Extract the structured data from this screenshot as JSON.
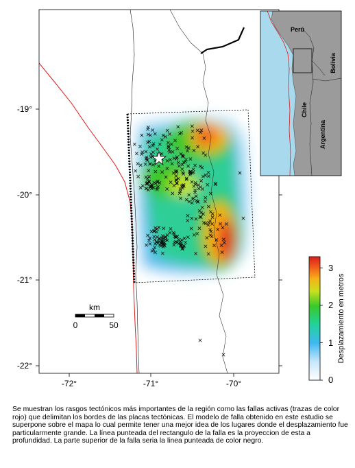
{
  "map": {
    "lat_ticks": [
      "-19°",
      "-20°",
      "-21°",
      "-22°"
    ],
    "lon_ticks": [
      "-72°",
      "-71°",
      "-70°"
    ],
    "epicenter_icon": "star-icon",
    "aftershock_icon": "x-icon"
  },
  "scalebar": {
    "unit": "km",
    "start": "0",
    "end": "50"
  },
  "colorbar": {
    "title": "Desplazamiento en metros",
    "ticks": [
      "0",
      "1",
      "2",
      "3"
    ],
    "min": 0,
    "max": 3.3
  },
  "inset": {
    "labels": {
      "peru": "Perú",
      "bolivia": "Bolivia",
      "chile": "Chile",
      "argentina": "Argentina"
    }
  },
  "caption": "Se muestran los rasgos tectónicos más importantes de la región como las fallas activas (trazas de color rojo) que delimitan los bordes de las placas tectónicas. El modelo de falla obtenido en este estudio se superpone sobre el mapa lo cual permite tener una mejor idea de los lugares donde el desplazamiento fue particularmente grande. La línea punteada del rectangulo de la falla es la proyeccion de esta a profundidad. La parte superior de la falla seria la linea punteada de color negro."
}
